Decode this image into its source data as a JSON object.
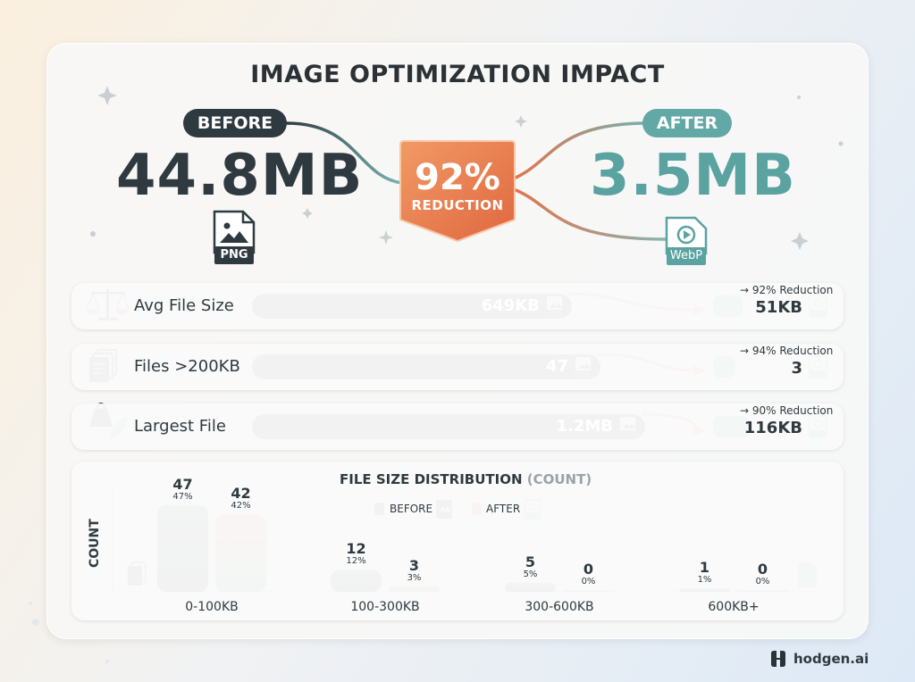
{
  "title": "IMAGE OPTIMIZATION IMPACT",
  "before": {
    "label": "BEFORE",
    "value": "44.8MB",
    "format": "PNG"
  },
  "after": {
    "label": "AFTER",
    "value": "3.5MB",
    "format": "WebP"
  },
  "reduction": {
    "value": "92%",
    "label": "REDUCTION"
  },
  "colors": {
    "dark": "#2f3a40",
    "teal": "#5aa3a1",
    "orange": "#e5734c"
  },
  "rows": [
    {
      "icon": "scale-icon",
      "label": "Avg File Size",
      "before_value": "649KB",
      "before_tag": "PNG",
      "before_fraction": 1.0,
      "after_fraction": 0.08,
      "reduction": "→ 92% Reduction",
      "after_value": "51KB",
      "after_tag": "WebP"
    },
    {
      "icon": "files-icon",
      "label": "Files >200KB",
      "before_value": "47",
      "before_tag": "PNG",
      "before_fraction": 1.0,
      "after_fraction": 0.06,
      "reduction": "→ 94% Reduction",
      "after_value": "3",
      "after_tag": "WebP"
    },
    {
      "icon": "weight-icon",
      "label": "Largest File",
      "before_value": "1.2MB",
      "before_tag": "PNG",
      "before_fraction": 1.0,
      "after_fraction": 0.1,
      "reduction": "→ 90% Reduction",
      "after_value": "116KB",
      "after_tag": "WebP"
    }
  ],
  "chart_data": {
    "type": "bar",
    "title": "FILE SIZE DISTRIBUTION",
    "title_unit": "(COUNT)",
    "ylabel": "COUNT",
    "xlabel": "",
    "ylim": [
      0,
      47
    ],
    "categories": [
      "0-100KB",
      "100-300KB",
      "300-600KB",
      "600KB+"
    ],
    "series": [
      {
        "name": "BEFORE",
        "values": [
          47,
          12,
          5,
          1
        ],
        "labels": [
          "47%",
          "12%",
          "5%",
          "1%"
        ],
        "tag": "PNG"
      },
      {
        "name": "AFTER",
        "values": [
          42,
          3,
          0,
          0
        ],
        "labels": [
          "42%",
          "3%",
          "0%",
          "0%"
        ],
        "tag": "WebP"
      }
    ],
    "legend": "top-center",
    "grid": false
  },
  "brand": "hodgen.ai"
}
